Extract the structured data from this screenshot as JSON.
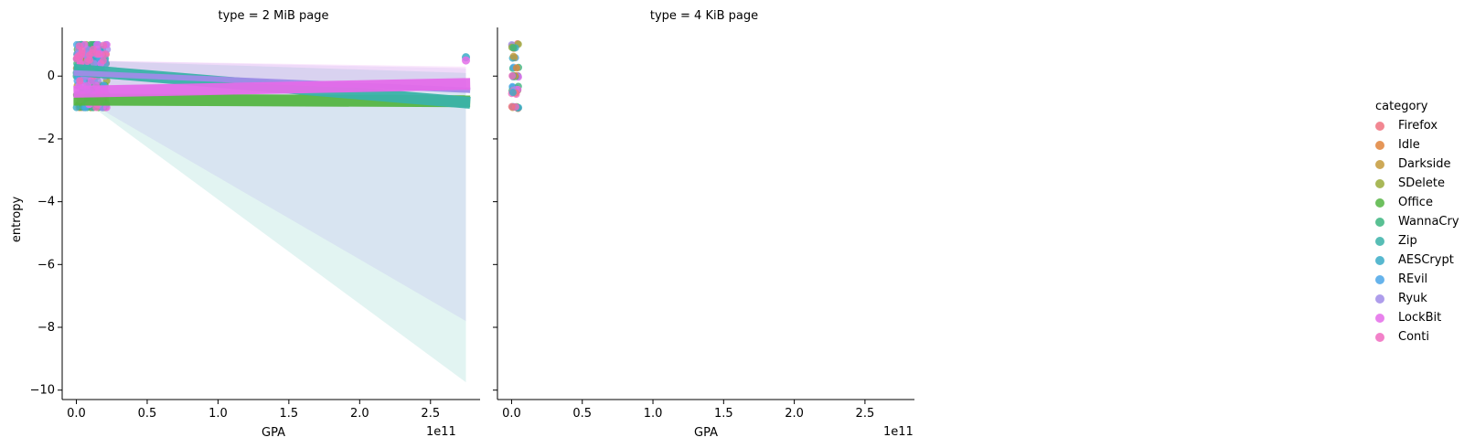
{
  "chart_data": {
    "type": "scatter",
    "x_exponent_label": "1e11",
    "panels": [
      {
        "title": "type = 2 MiB page",
        "xlabel": "GPA",
        "ylabel": "entropy",
        "xlim": [
          -0.1,
          2.85
        ],
        "ylim": [
          -10.3,
          1.55
        ],
        "xticks": [
          "0.0",
          "0.5",
          "1.0",
          "1.5",
          "2.0",
          "2.5"
        ],
        "yticks": [
          "0",
          "−2",
          "−4",
          "−6",
          "−8",
          "−10"
        ],
        "scatter_cluster": {
          "x_range": [
            0.0,
            0.22
          ],
          "y_range": [
            -1.0,
            1.0
          ]
        },
        "outliers": [
          {
            "category": "AESCrypt",
            "x": 2.75,
            "y": 0.6
          },
          {
            "category": "LockBit",
            "x": 2.75,
            "y": 0.5
          }
        ],
        "regression_lines": [
          {
            "category": "Office",
            "y_start": -0.75,
            "y_end": -0.8
          },
          {
            "category": "Zip",
            "y_start": 0.2,
            "y_end": -0.85
          },
          {
            "category": "Ryuk",
            "y_start": 0.1,
            "y_end": -0.45
          },
          {
            "category": "LockBit",
            "y_start": -0.5,
            "y_end": -0.25
          }
        ],
        "confidence_bands": [
          {
            "category": "Zip",
            "x_end": 2.75,
            "upper_end": 0.1,
            "lower_end": -9.75
          },
          {
            "category": "Ryuk",
            "x_end": 2.75,
            "upper_end": 0.25,
            "lower_end": -7.8
          },
          {
            "category": "LockBit",
            "x_end": 2.75,
            "upper_end": 0.3,
            "lower_end": -0.4
          }
        ]
      },
      {
        "title": "type = 4 KiB page",
        "xlabel": "GPA",
        "ylabel": "",
        "xlim": [
          -0.1,
          2.85
        ],
        "ylim": [
          -10.3,
          1.55
        ],
        "xticks": [
          "0.0",
          "0.5",
          "1.0",
          "1.5",
          "2.0",
          "2.5"
        ],
        "scatter_cluster": {
          "x_range": [
            0.0,
            0.05
          ],
          "y_range": [
            -1.0,
            1.0
          ]
        },
        "point_levels": [
          1.0,
          0.9,
          0.6,
          0.25,
          0.0,
          -0.35,
          -0.45,
          -0.55,
          -1.0
        ]
      }
    ],
    "legend": {
      "title": "category",
      "position": "right",
      "entries": [
        {
          "name": "Firefox",
          "color": "#f0727f"
        },
        {
          "name": "Idle",
          "color": "#e0843b"
        },
        {
          "name": "Darkside",
          "color": "#c49a3a"
        },
        {
          "name": "SDelete",
          "color": "#9aab3b"
        },
        {
          "name": "Office",
          "color": "#55b543"
        },
        {
          "name": "WannaCry",
          "color": "#3cb580"
        },
        {
          "name": "Zip",
          "color": "#3ab2a8"
        },
        {
          "name": "AESCrypt",
          "color": "#39acc7"
        },
        {
          "name": "REvil",
          "color": "#4ba6e8"
        },
        {
          "name": "Ryuk",
          "color": "#a08ce8"
        },
        {
          "name": "LockBit",
          "color": "#e46ce9"
        },
        {
          "name": "Conti",
          "color": "#f06bbf"
        }
      ]
    }
  }
}
